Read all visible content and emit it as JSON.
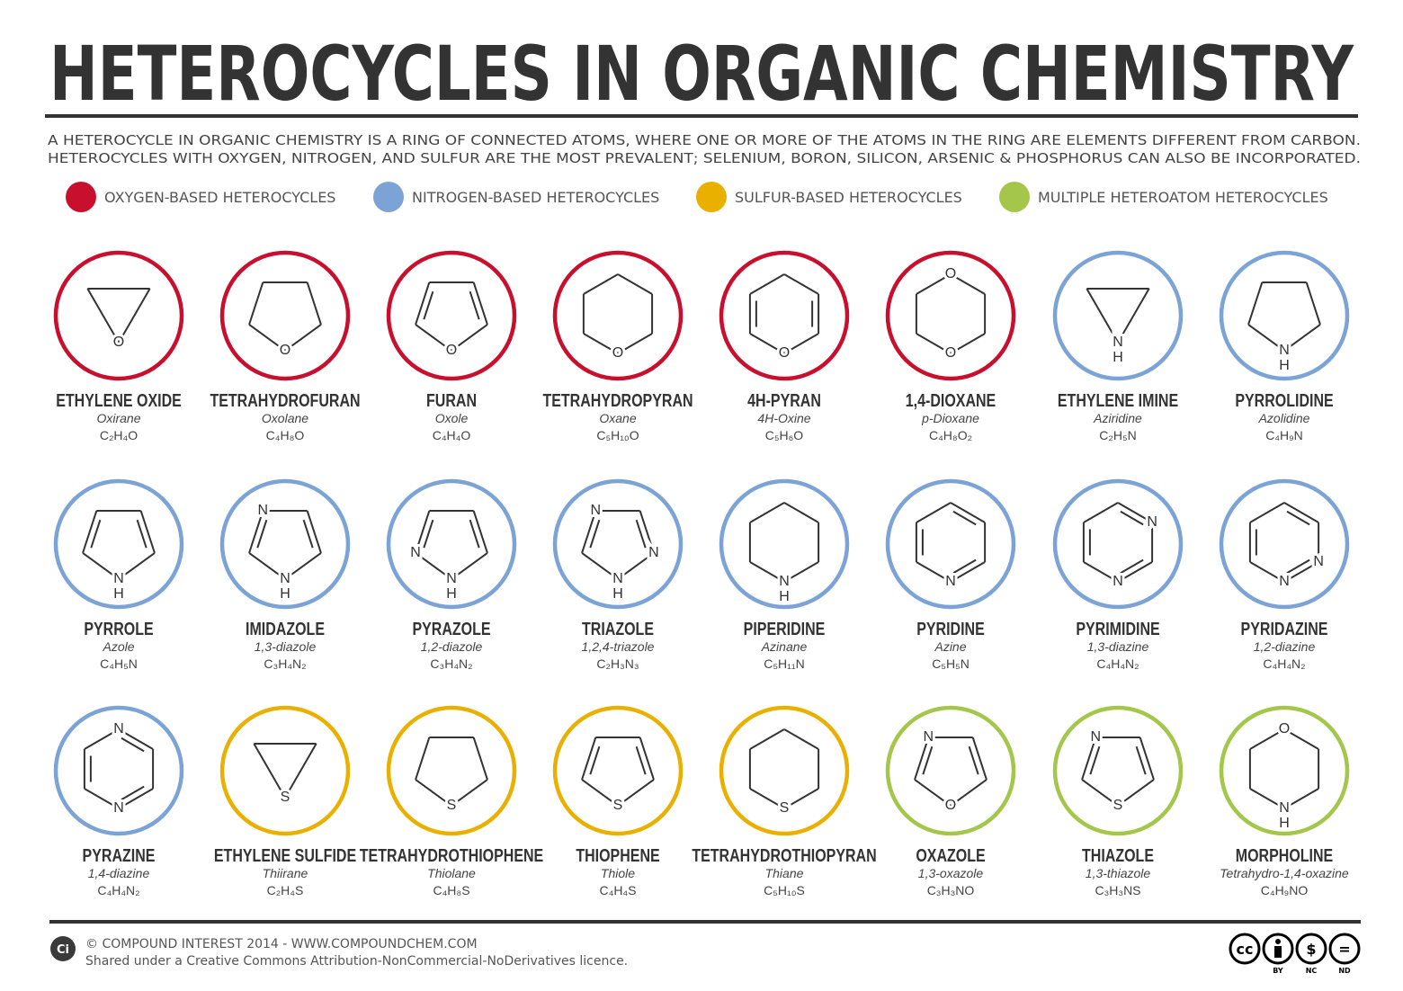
{
  "header": {
    "title": "HETEROCYCLES IN ORGANIC CHEMISTRY",
    "description": [
      "A HETEROCYCLE IN ORGANIC CHEMISTRY IS A RING OF CONNECTED ATOMS, WHERE ONE OR MORE OF THE ATOMS IN THE RING ARE ELEMENTS DIFFERENT FROM CARBON.",
      "HETEROCYCLES WITH OXYGEN, NITROGEN, AND SULFUR ARE THE MOST PREVALENT; SELENIUM, BORON, SILICON, ARSENIC & PHOSPHORUS CAN ALSO BE INCORPORATED."
    ]
  },
  "legend": [
    {
      "label": "OXYGEN-BASED HETEROCYCLES",
      "color": "#c8102e"
    },
    {
      "label": "NITROGEN-BASED HETEROCYCLES",
      "color": "#7ba3d6"
    },
    {
      "label": "SULFUR-BASED HETEROCYCLES",
      "color": "#e9b000"
    },
    {
      "label": "MULTIPLE HETEROATOM HETEROCYCLES",
      "color": "#a3c64b"
    }
  ],
  "compounds": [
    {
      "name": "ETHYLENE OXIDE",
      "alt": "Oxirane",
      "formula": "C₂H₄O",
      "color": "#c8102e",
      "atoms": [
        "O"
      ]
    },
    {
      "name": "TETRAHYDROFURAN",
      "alt": "Oxolane",
      "formula": "C₄H₈O",
      "color": "#c8102e",
      "atoms": [
        "O"
      ]
    },
    {
      "name": "FURAN",
      "alt": "Oxole",
      "formula": "C₄H₄O",
      "color": "#c8102e",
      "atoms": [
        "O"
      ]
    },
    {
      "name": "TETRAHYDROPYRAN",
      "alt": "Oxane",
      "formula": "C₅H₁₀O",
      "color": "#c8102e",
      "atoms": [
        "O"
      ]
    },
    {
      "name": "4H-PYRAN",
      "alt": "4H-Oxine",
      "formula": "C₅H₆O",
      "color": "#c8102e",
      "atoms": [
        "O"
      ]
    },
    {
      "name": "1,4-DIOXANE",
      "alt": "p-Dioxane",
      "formula": "C₄H₈O₂",
      "color": "#c8102e",
      "atoms": [
        "O",
        "O"
      ]
    },
    {
      "name": "ETHYLENE IMINE",
      "alt": "Aziridine",
      "formula": "C₂H₅N",
      "color": "#7ba3d6",
      "atoms": [
        "N",
        "H"
      ]
    },
    {
      "name": "PYRROLIDINE",
      "alt": "Azolidine",
      "formula": "C₄H₉N",
      "color": "#7ba3d6",
      "atoms": [
        "N",
        "H"
      ]
    },
    {
      "name": "PYRROLE",
      "alt": "Azole",
      "formula": "C₄H₅N",
      "color": "#7ba3d6",
      "atoms": [
        "N",
        "H"
      ]
    },
    {
      "name": "IMIDAZOLE",
      "alt": "1,3-diazole",
      "formula": "C₃H₄N₂",
      "color": "#7ba3d6",
      "atoms": [
        "N",
        "N",
        "H"
      ]
    },
    {
      "name": "PYRAZOLE",
      "alt": "1,2-diazole",
      "formula": "C₃H₄N₂",
      "color": "#7ba3d6",
      "atoms": [
        "N",
        "N",
        "H"
      ]
    },
    {
      "name": "TRIAZOLE",
      "alt": "1,2,4-triazole",
      "formula": "C₂H₃N₃",
      "color": "#7ba3d6",
      "atoms": [
        "N",
        "N",
        "N",
        "H"
      ]
    },
    {
      "name": "PIPERIDINE",
      "alt": "Azinane",
      "formula": "C₅H₁₁N",
      "color": "#7ba3d6",
      "atoms": [
        "N",
        "H"
      ]
    },
    {
      "name": "PYRIDINE",
      "alt": "Azine",
      "formula": "C₅H₅N",
      "color": "#7ba3d6",
      "atoms": [
        "N"
      ]
    },
    {
      "name": "PYRIMIDINE",
      "alt": "1,3-diazine",
      "formula": "C₄H₄N₂",
      "color": "#7ba3d6",
      "atoms": [
        "N",
        "N"
      ]
    },
    {
      "name": "PYRIDAZINE",
      "alt": "1,2-diazine",
      "formula": "C₄H₄N₂",
      "color": "#7ba3d6",
      "atoms": [
        "N",
        "N"
      ]
    },
    {
      "name": "PYRAZINE",
      "alt": "1,4-diazine",
      "formula": "C₄H₄N₂",
      "color": "#7ba3d6",
      "atoms": [
        "N",
        "N"
      ]
    },
    {
      "name": "ETHYLENE SULFIDE",
      "alt": "Thiirane",
      "formula": "C₂H₄S",
      "color": "#e9b000",
      "atoms": [
        "S"
      ]
    },
    {
      "name": "TETRAHYDROTHIOPHENE",
      "alt": "Thiolane",
      "formula": "C₄H₈S",
      "color": "#e9b000",
      "atoms": [
        "S"
      ]
    },
    {
      "name": "THIOPHENE",
      "alt": "Thiole",
      "formula": "C₄H₄S",
      "color": "#e9b000",
      "atoms": [
        "S"
      ]
    },
    {
      "name": "TETRAHYDROTHIOPYRAN",
      "alt": "Thiane",
      "formula": "C₅H₁₀S",
      "color": "#e9b000",
      "atoms": [
        "S"
      ]
    },
    {
      "name": "OXAZOLE",
      "alt": "1,3-oxazole",
      "formula": "C₃H₃NO",
      "color": "#a3c64b",
      "atoms": [
        "N",
        "O"
      ]
    },
    {
      "name": "THIAZOLE",
      "alt": "1,3-thiazole",
      "formula": "C₃H₃NS",
      "color": "#a3c64b",
      "atoms": [
        "N",
        "S"
      ]
    },
    {
      "name": "MORPHOLINE",
      "alt": "Tetrahydro-1,4-oxazine",
      "formula": "C₄H₉NO",
      "color": "#a3c64b",
      "atoms": [
        "O",
        "N",
        "H"
      ]
    }
  ],
  "footer": {
    "logo": "Ci",
    "copyright": "© COMPOUND INTEREST 2014 - WWW.COMPOUNDCHEM.COM",
    "licence": "Shared under a Creative Commons Attribution-NonCommercial-NoDerivatives licence.",
    "badge_symbols": [
      "cc",
      "$",
      "="
    ],
    "badge_labels": [
      "BY",
      "NC",
      "ND"
    ]
  }
}
